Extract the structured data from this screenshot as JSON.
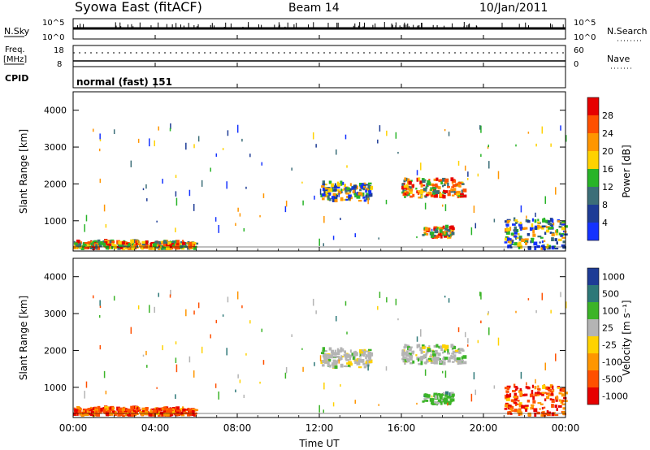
{
  "header": {
    "station": "Syowa East (fitACF)",
    "beam": "Beam 14",
    "date": "10/Jan/2011"
  },
  "noise_panel": {
    "left_label": "N.Sky",
    "left_ticks": [
      "10^5",
      "10^0"
    ],
    "right_label": "N.Search",
    "right_ticks": [
      "10^5",
      "10^0"
    ]
  },
  "freq_panel": {
    "left_label_1": "Freq.",
    "left_label_2": "[MHz]",
    "left_ticks": [
      "18",
      "8"
    ],
    "right_label": "Nave",
    "right_ticks": [
      "60",
      "0"
    ]
  },
  "cpid_panel": {
    "label": "CPID",
    "text": "normal (fast) 151"
  },
  "x_axis": {
    "label": "Time UT",
    "ticks": [
      "00:00",
      "04:00",
      "08:00",
      "12:00",
      "16:00",
      "20:00",
      "00:00"
    ]
  },
  "colors": {
    "power_scale": [
      "#1432ff",
      "#1e3c96",
      "#3c6e78",
      "#28b428",
      "#ffd200",
      "#ff9600",
      "#ff5000",
      "#e60000"
    ],
    "velocity_scale": [
      "#1e3c96",
      "#2d7878",
      "#3cb428",
      "#b4b4b4",
      "#ffd200",
      "#ff9600",
      "#ff5000",
      "#e60000"
    ]
  },
  "chart_data": [
    {
      "type": "heatmap",
      "title": "Power",
      "xlabel": "",
      "ylabel": "Slant Range [km]",
      "xlim": [
        0,
        24
      ],
      "ylim": [
        180,
        4500
      ],
      "y_ticks": [
        "1000",
        "2000",
        "3000",
        "4000"
      ],
      "colorbar": {
        "label": "Power [dB]",
        "ticks": [
          "4",
          "8",
          "12",
          "16",
          "20",
          "24",
          "28"
        ]
      },
      "echo_regions": [
        {
          "t": [
            0,
            6
          ],
          "range": [
            200,
            400
          ],
          "level": "high"
        },
        {
          "t": [
            12,
            14.5
          ],
          "range": [
            1500,
            2000
          ],
          "level": "medium"
        },
        {
          "t": [
            16,
            19
          ],
          "range": [
            1600,
            2100
          ],
          "level": "high"
        },
        {
          "t": [
            17,
            18.5
          ],
          "range": [
            500,
            800
          ],
          "level": "high"
        },
        {
          "t": [
            21,
            24
          ],
          "range": [
            200,
            1000
          ],
          "level": "medium"
        }
      ]
    },
    {
      "type": "heatmap",
      "title": "Velocity",
      "xlabel": "Time UT",
      "ylabel": "Slant Range [km]",
      "xlim": [
        0,
        24
      ],
      "ylim": [
        180,
        4500
      ],
      "y_ticks": [
        "1000",
        "2000",
        "3000",
        "4000"
      ],
      "colorbar": {
        "label": "Velocity [m s⁻¹]",
        "ticks": [
          "1000",
          "500",
          "100",
          "25",
          "-25",
          "-100",
          "-500",
          "-1000"
        ]
      }
    }
  ]
}
